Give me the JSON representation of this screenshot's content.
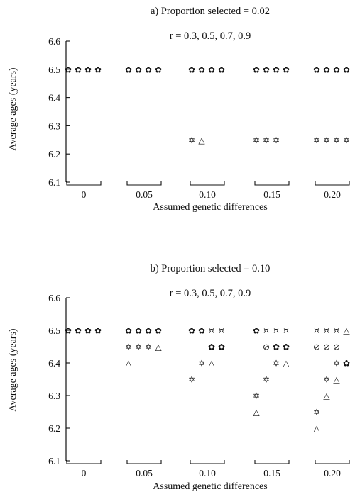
{
  "panels": [
    {
      "title": "a) Proportion selected = 0.02",
      "subtitle": "r = 0.3, 0.5, 0.7, 0.9",
      "ylabel": "Average ages (years)",
      "xlabel": "Assumed genetic differences"
    },
    {
      "title": "b) Proportion selected = 0.10",
      "subtitle": "r = 0.3, 0.5, 0.7, 0.9",
      "ylabel": "Average ages (years)",
      "xlabel": "Assumed genetic differences"
    }
  ],
  "chart_data": [
    {
      "type": "scatter",
      "title": "a) Proportion selected = 0.02",
      "subtitle": "r = 0.3, 0.5, 0.7, 0.9",
      "xlabel": "Assumed genetic differences",
      "ylabel": "Average ages (years)",
      "ylim": [
        6.1,
        6.6
      ],
      "yticks": [
        "6.1",
        "6.2",
        "6.3",
        "6.4",
        "6.5",
        "6.6"
      ],
      "groups": [
        "0",
        "0.05",
        "0.10",
        "0.15",
        "0.20"
      ],
      "grid": false,
      "points": [
        {
          "group": "0",
          "slot": 0,
          "y": 6.5,
          "marker": "✿"
        },
        {
          "group": "0",
          "slot": 1,
          "y": 6.5,
          "marker": "✿"
        },
        {
          "group": "0",
          "slot": 2,
          "y": 6.5,
          "marker": "✿"
        },
        {
          "group": "0",
          "slot": 3,
          "y": 6.5,
          "marker": "✿"
        },
        {
          "group": "0.05",
          "slot": 0,
          "y": 6.5,
          "marker": "✿"
        },
        {
          "group": "0.05",
          "slot": 1,
          "y": 6.5,
          "marker": "✿"
        },
        {
          "group": "0.05",
          "slot": 2,
          "y": 6.5,
          "marker": "✿"
        },
        {
          "group": "0.05",
          "slot": 3,
          "y": 6.5,
          "marker": "✿"
        },
        {
          "group": "0.10",
          "slot": 0,
          "y": 6.5,
          "marker": "✿"
        },
        {
          "group": "0.10",
          "slot": 1,
          "y": 6.5,
          "marker": "✿"
        },
        {
          "group": "0.10",
          "slot": 2,
          "y": 6.5,
          "marker": "✿"
        },
        {
          "group": "0.10",
          "slot": 3,
          "y": 6.5,
          "marker": "✿"
        },
        {
          "group": "0.10",
          "slot": 0,
          "y": 6.25,
          "marker": "✡"
        },
        {
          "group": "0.10",
          "slot": 1,
          "y": 6.25,
          "marker": "△"
        },
        {
          "group": "0.15",
          "slot": 0,
          "y": 6.5,
          "marker": "✿"
        },
        {
          "group": "0.15",
          "slot": 1,
          "y": 6.5,
          "marker": "✿"
        },
        {
          "group": "0.15",
          "slot": 2,
          "y": 6.5,
          "marker": "✿"
        },
        {
          "group": "0.15",
          "slot": 3,
          "y": 6.5,
          "marker": "✿"
        },
        {
          "group": "0.15",
          "slot": 0,
          "y": 6.25,
          "marker": "✡"
        },
        {
          "group": "0.15",
          "slot": 1,
          "y": 6.25,
          "marker": "✡"
        },
        {
          "group": "0.15",
          "slot": 2,
          "y": 6.25,
          "marker": "✡"
        },
        {
          "group": "0.20",
          "slot": 0,
          "y": 6.5,
          "marker": "✿"
        },
        {
          "group": "0.20",
          "slot": 1,
          "y": 6.5,
          "marker": "✿"
        },
        {
          "group": "0.20",
          "slot": 2,
          "y": 6.5,
          "marker": "✿"
        },
        {
          "group": "0.20",
          "slot": 3,
          "y": 6.5,
          "marker": "✿"
        },
        {
          "group": "0.20",
          "slot": 0,
          "y": 6.25,
          "marker": "✡"
        },
        {
          "group": "0.20",
          "slot": 1,
          "y": 6.25,
          "marker": "✡"
        },
        {
          "group": "0.20",
          "slot": 2,
          "y": 6.25,
          "marker": "✡"
        },
        {
          "group": "0.20",
          "slot": 3,
          "y": 6.25,
          "marker": "✡"
        }
      ]
    },
    {
      "type": "scatter",
      "title": "b) Proportion selected = 0.10",
      "subtitle": "r = 0.3, 0.5, 0.7, 0.9",
      "xlabel": "Assumed genetic differences",
      "ylabel": "Average ages (years)",
      "ylim": [
        6.1,
        6.6
      ],
      "yticks": [
        "6.1",
        "6.2",
        "6.3",
        "6.4",
        "6.5",
        "6.6"
      ],
      "groups": [
        "0",
        "0.05",
        "0.10",
        "0.15",
        "0.20"
      ],
      "grid": false,
      "points": [
        {
          "group": "0",
          "slot": 0,
          "y": 6.5,
          "marker": "✿"
        },
        {
          "group": "0",
          "slot": 1,
          "y": 6.5,
          "marker": "✿"
        },
        {
          "group": "0",
          "slot": 2,
          "y": 6.5,
          "marker": "✿"
        },
        {
          "group": "0",
          "slot": 3,
          "y": 6.5,
          "marker": "✿"
        },
        {
          "group": "0.05",
          "slot": 0,
          "y": 6.5,
          "marker": "✿"
        },
        {
          "group": "0.05",
          "slot": 1,
          "y": 6.5,
          "marker": "✿"
        },
        {
          "group": "0.05",
          "slot": 2,
          "y": 6.5,
          "marker": "✿"
        },
        {
          "group": "0.05",
          "slot": 3,
          "y": 6.5,
          "marker": "✿"
        },
        {
          "group": "0.05",
          "slot": 0,
          "y": 6.45,
          "marker": "✡"
        },
        {
          "group": "0.05",
          "slot": 1,
          "y": 6.45,
          "marker": "✡"
        },
        {
          "group": "0.05",
          "slot": 2,
          "y": 6.45,
          "marker": "✡"
        },
        {
          "group": "0.05",
          "slot": 3,
          "y": 6.45,
          "marker": "△"
        },
        {
          "group": "0.05",
          "slot": 0,
          "y": 6.4,
          "marker": "△"
        },
        {
          "group": "0.10",
          "slot": 0,
          "y": 6.5,
          "marker": "✿"
        },
        {
          "group": "0.10",
          "slot": 1,
          "y": 6.5,
          "marker": "✿"
        },
        {
          "group": "0.10",
          "slot": 2,
          "y": 6.5,
          "marker": "¤"
        },
        {
          "group": "0.10",
          "slot": 3,
          "y": 6.5,
          "marker": "¤"
        },
        {
          "group": "0.10",
          "slot": 2,
          "y": 6.45,
          "marker": "✿"
        },
        {
          "group": "0.10",
          "slot": 3,
          "y": 6.45,
          "marker": "✿"
        },
        {
          "group": "0.10",
          "slot": 1,
          "y": 6.4,
          "marker": "✡"
        },
        {
          "group": "0.10",
          "slot": 2,
          "y": 6.4,
          "marker": "△"
        },
        {
          "group": "0.10",
          "slot": 0,
          "y": 6.35,
          "marker": "✡"
        },
        {
          "group": "0.15",
          "slot": 0,
          "y": 6.5,
          "marker": "✿"
        },
        {
          "group": "0.15",
          "slot": 1,
          "y": 6.5,
          "marker": "¤"
        },
        {
          "group": "0.15",
          "slot": 2,
          "y": 6.5,
          "marker": "¤"
        },
        {
          "group": "0.15",
          "slot": 3,
          "y": 6.5,
          "marker": "¤"
        },
        {
          "group": "0.15",
          "slot": 1,
          "y": 6.45,
          "marker": "⊘"
        },
        {
          "group": "0.15",
          "slot": 2,
          "y": 6.45,
          "marker": "✿"
        },
        {
          "group": "0.15",
          "slot": 3,
          "y": 6.45,
          "marker": "✿"
        },
        {
          "group": "0.15",
          "slot": 2,
          "y": 6.4,
          "marker": "✡"
        },
        {
          "group": "0.15",
          "slot": 3,
          "y": 6.4,
          "marker": "△"
        },
        {
          "group": "0.15",
          "slot": 1,
          "y": 6.35,
          "marker": "✡"
        },
        {
          "group": "0.15",
          "slot": 0,
          "y": 6.3,
          "marker": "✡"
        },
        {
          "group": "0.15",
          "slot": 0,
          "y": 6.25,
          "marker": "△"
        },
        {
          "group": "0.20",
          "slot": 0,
          "y": 6.5,
          "marker": "¤"
        },
        {
          "group": "0.20",
          "slot": 1,
          "y": 6.5,
          "marker": "¤"
        },
        {
          "group": "0.20",
          "slot": 2,
          "y": 6.5,
          "marker": "¤"
        },
        {
          "group": "0.20",
          "slot": 3,
          "y": 6.5,
          "marker": "△"
        },
        {
          "group": "0.20",
          "slot": 0,
          "y": 6.45,
          "marker": "⊘"
        },
        {
          "group": "0.20",
          "slot": 1,
          "y": 6.45,
          "marker": "⊘"
        },
        {
          "group": "0.20",
          "slot": 2,
          "y": 6.45,
          "marker": "⊘"
        },
        {
          "group": "0.20",
          "slot": 2,
          "y": 6.4,
          "marker": "✡"
        },
        {
          "group": "0.20",
          "slot": 3,
          "y": 6.4,
          "marker": "✿"
        },
        {
          "group": "0.20",
          "slot": 1,
          "y": 6.35,
          "marker": "✡"
        },
        {
          "group": "0.20",
          "slot": 2,
          "y": 6.35,
          "marker": "△"
        },
        {
          "group": "0.20",
          "slot": 1,
          "y": 6.3,
          "marker": "△"
        },
        {
          "group": "0.20",
          "slot": 0,
          "y": 6.25,
          "marker": "✡"
        },
        {
          "group": "0.20",
          "slot": 0,
          "y": 6.2,
          "marker": "△"
        }
      ]
    }
  ]
}
